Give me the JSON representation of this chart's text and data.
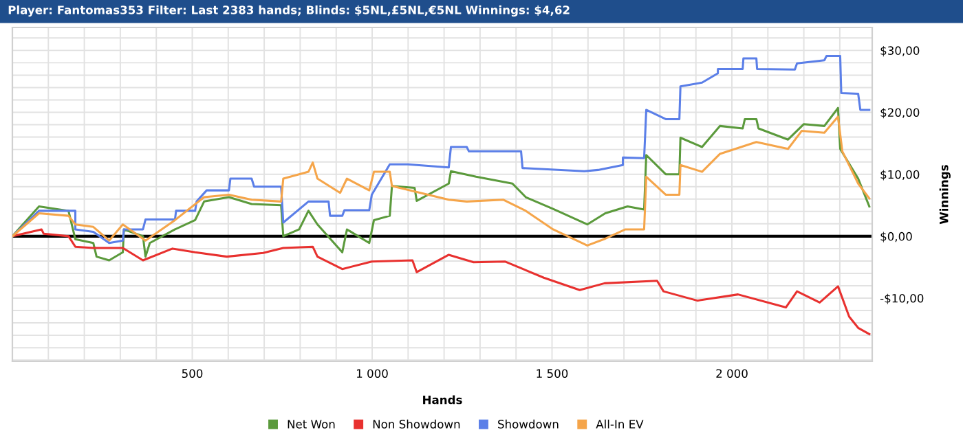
{
  "chart_data": {
    "type": "line",
    "title": "Player: Fantomas353 Filter: Last 2383 hands; Blinds: $5NL,£5NL,€5NL Winnings: $4,62",
    "xlabel": "Hands",
    "ylabel": "Winnings",
    "xlim": [
      0,
      2390
    ],
    "ylim": [
      -20.2,
      33.7
    ],
    "xticks": [
      {
        "value": 100,
        "label": null
      },
      {
        "value": 200,
        "label": null
      },
      {
        "value": 300,
        "label": null
      },
      {
        "value": 400,
        "label": null
      },
      500,
      {
        "value": 600,
        "label": null
      },
      {
        "value": 700,
        "label": null
      },
      {
        "value": 800,
        "label": null
      },
      {
        "value": 900,
        "label": null
      },
      {
        "value": 1000,
        "label": "1 000"
      },
      {
        "value": 1100,
        "label": null
      },
      {
        "value": 1200,
        "label": null
      },
      {
        "value": 1300,
        "label": null
      },
      {
        "value": 1400,
        "label": null
      },
      {
        "value": 1500,
        "label": "1 500"
      },
      {
        "value": 1600,
        "label": null
      },
      {
        "value": 1700,
        "label": null
      },
      {
        "value": 1800,
        "label": null
      },
      {
        "value": 1900,
        "label": null
      },
      {
        "value": 2000,
        "label": "2 000"
      },
      {
        "value": 2100,
        "label": null
      },
      {
        "value": 2200,
        "label": null
      },
      {
        "value": 2300,
        "label": null
      }
    ],
    "yticks": [
      {
        "value": -20,
        "label": null
      },
      {
        "value": -18,
        "label": null
      },
      {
        "value": -16,
        "label": null
      },
      {
        "value": -14,
        "label": null
      },
      {
        "value": -12,
        "label": null
      },
      {
        "value": -10,
        "label": "-$10,00"
      },
      {
        "value": -8,
        "label": null
      },
      {
        "value": -6,
        "label": null
      },
      {
        "value": -4,
        "label": null
      },
      {
        "value": -2,
        "label": null
      },
      {
        "value": 0,
        "label": "$0,00"
      },
      {
        "value": 2,
        "label": null
      },
      {
        "value": 4,
        "label": null
      },
      {
        "value": 6,
        "label": null
      },
      {
        "value": 8,
        "label": null
      },
      {
        "value": 10,
        "label": "$10,00"
      },
      {
        "value": 12,
        "label": null
      },
      {
        "value": 14,
        "label": null
      },
      {
        "value": 16,
        "label": null
      },
      {
        "value": 18,
        "label": null
      },
      {
        "value": 20,
        "label": "$20,00"
      },
      {
        "value": 22,
        "label": null
      },
      {
        "value": 24,
        "label": null
      },
      {
        "value": 26,
        "label": null
      },
      {
        "value": 28,
        "label": null
      },
      {
        "value": 30,
        "label": "$30,00"
      },
      {
        "value": 32,
        "label": null
      }
    ],
    "grid": true,
    "legend": "bottom",
    "marker": "none",
    "line_style": "solid",
    "ref_lines": [
      {
        "axis": "y",
        "value": 0,
        "label": null,
        "color": "#000000"
      }
    ],
    "series": [
      {
        "name": "Net Won",
        "color": "#5b9a3c",
        "x": [
          0,
          74,
          156,
          175,
          225,
          234,
          269,
          307,
          310,
          363,
          370,
          382,
          452,
          508,
          533,
          602,
          665,
          747,
          753,
          797,
          823,
          848,
          917,
          930,
          992,
          1005,
          1049,
          1055,
          1118,
          1124,
          1213,
          1219,
          1289,
          1390,
          1427,
          1503,
          1598,
          1648,
          1710,
          1756,
          1762,
          1816,
          1854,
          1857,
          1917,
          1967,
          2030,
          2036,
          2068,
          2074,
          2156,
          2200,
          2257,
          2295,
          2301,
          2351,
          2382
        ],
        "values": [
          0,
          4.8,
          4.1,
          -0.5,
          -1.1,
          -3.3,
          -3.9,
          -2.6,
          1.1,
          0,
          -3.3,
          -1.1,
          1.1,
          2.6,
          5.6,
          6.3,
          5.2,
          5.0,
          0,
          1.1,
          4.1,
          1.9,
          -2.6,
          1.1,
          -1.1,
          2.6,
          3.3,
          8.1,
          7.8,
          5.7,
          8.5,
          10.5,
          9.6,
          8.5,
          6.3,
          4.4,
          1.9,
          3.7,
          4.8,
          4.3,
          13.1,
          10.0,
          10.0,
          15.9,
          14.4,
          17.8,
          17.4,
          18.9,
          18.9,
          17.4,
          15.6,
          18.1,
          17.8,
          20.7,
          14.1,
          9.3,
          4.8
        ]
      },
      {
        "name": "Non Showdown",
        "color": "#e8312f",
        "x": [
          0,
          81,
          87,
          156,
          175,
          225,
          307,
          363,
          445,
          508,
          596,
          697,
          753,
          835,
          848,
          917,
          999,
          1112,
          1124,
          1213,
          1282,
          1370,
          1477,
          1577,
          1646,
          1792,
          1810,
          1904,
          2017,
          2150,
          2181,
          2244,
          2295,
          2326,
          2351,
          2382
        ],
        "values": [
          0,
          1.1,
          0.4,
          0,
          -1.7,
          -1.9,
          -1.9,
          -3.9,
          -2.0,
          -2.6,
          -3.3,
          -2.7,
          -1.9,
          -1.7,
          -3.3,
          -5.3,
          -4.1,
          -3.9,
          -5.8,
          -3.0,
          -4.2,
          -4.1,
          -6.7,
          -8.7,
          -7.6,
          -7.2,
          -8.9,
          -10.4,
          -9.4,
          -11.5,
          -8.9,
          -10.7,
          -8.1,
          -13.0,
          -14.8,
          -15.8
        ]
      },
      {
        "name": "Showdown",
        "color": "#5b7fe8",
        "x": [
          0,
          74,
          175,
          175,
          225,
          269,
          307,
          310,
          363,
          370,
          452,
          455,
          508,
          512,
          540,
          602,
          606,
          665,
          672,
          747,
          753,
          823,
          879,
          883,
          917,
          923,
          992,
          999,
          1049,
          1099,
          1213,
          1219,
          1263,
          1269,
          1414,
          1418,
          1590,
          1628,
          1697,
          1697,
          1756,
          1762,
          1816,
          1854,
          1857,
          1917,
          1961,
          1961,
          2030,
          2032,
          2068,
          2070,
          2175,
          2181,
          2257,
          2263,
          2301,
          2304,
          2351,
          2357,
          2382
        ],
        "values": [
          0,
          4.1,
          4.1,
          1.1,
          0.7,
          -1.1,
          -0.7,
          1.1,
          1.1,
          2.7,
          2.7,
          4.1,
          4.1,
          5.6,
          7.4,
          7.4,
          9.3,
          9.3,
          8.0,
          8.0,
          2.2,
          5.6,
          5.6,
          3.3,
          3.3,
          4.2,
          4.2,
          6.7,
          11.6,
          11.6,
          11.1,
          14.4,
          14.4,
          13.7,
          13.7,
          11.0,
          10.5,
          10.7,
          11.5,
          12.7,
          12.6,
          20.4,
          18.9,
          18.9,
          24.2,
          24.8,
          26.3,
          27.0,
          27.0,
          28.7,
          28.7,
          27.0,
          26.9,
          27.9,
          28.4,
          29.1,
          29.1,
          23.1,
          23.0,
          20.4,
          20.4
        ]
      },
      {
        "name": "All-In EV",
        "color": "#f5a54a",
        "x": [
          0,
          74,
          156,
          175,
          225,
          269,
          307,
          370,
          452,
          533,
          602,
          665,
          747,
          753,
          823,
          835,
          848,
          911,
          930,
          992,
          1005,
          1049,
          1055,
          1213,
          1263,
          1364,
          1427,
          1503,
          1598,
          1648,
          1704,
          1756,
          1762,
          1816,
          1854,
          1857,
          1917,
          1967,
          2068,
          2156,
          2194,
          2257,
          2295,
          2307,
          2351,
          2382
        ],
        "values": [
          0,
          3.7,
          3.3,
          1.9,
          1.5,
          -0.7,
          1.9,
          -0.7,
          2.6,
          6.3,
          6.7,
          5.9,
          5.6,
          9.3,
          10.4,
          11.9,
          9.3,
          7.0,
          9.3,
          7.4,
          10.4,
          10.4,
          8.1,
          5.9,
          5.6,
          5.9,
          4.1,
          1.1,
          -1.5,
          -0.4,
          1.1,
          1.1,
          9.6,
          6.7,
          6.7,
          11.5,
          10.4,
          13.3,
          15.2,
          14.1,
          17.0,
          16.7,
          19.3,
          13.7,
          8.5,
          6.1
        ]
      }
    ]
  }
}
